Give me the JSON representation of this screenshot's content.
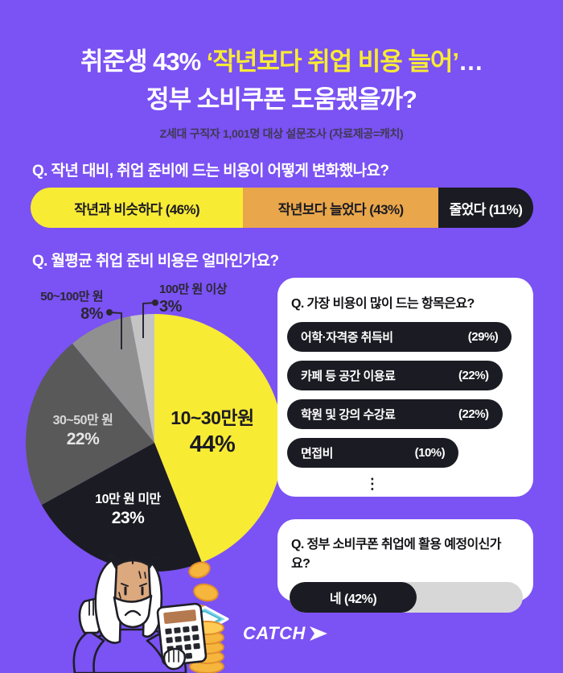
{
  "header": {
    "title_l1_a": "취준생 43% ",
    "title_l1_b": "‘작년보다 취업 비용 늘어’",
    "title_l1_c": "…",
    "title_l2": "정부 소비쿠폰 도움됐을까?",
    "subtitle": "Z세대 구직자 1,001명 대상 설문조사 (자료제공=캐치)"
  },
  "colors": {
    "background": "#7B52F3",
    "accent_yellow": "#F8EB34",
    "accent_orange": "#E9A64A",
    "near_black": "#1B1B23",
    "pie_gray_dark": "#595959",
    "pie_gray_mid": "#909090",
    "pie_gray_light": "#C4C4C4",
    "track_gray": "#D7D7D7",
    "white": "#FFFFFF"
  },
  "chart_data": [
    {
      "type": "bar",
      "variant": "stacked-horizontal",
      "title": "Q. 작년 대비, 취업 준비에 드는 비용이 어떻게 변화했나요?",
      "segments": [
        {
          "label": "작년과 비슷하다 (46%)",
          "value": 46,
          "color": "#F8EB34",
          "text_color": "#1B1B23",
          "width_pct": 42.3
        },
        {
          "label": "작년보다 늘었다 (43%)",
          "value": 43,
          "color": "#E9A64A",
          "text_color": "#1B1B23",
          "width_pct": 38.8
        },
        {
          "label": "줄었다 (11%)",
          "value": 11,
          "color": "#1B1B23",
          "text_color": "#FFFFFF",
          "width_pct": 18.9
        }
      ]
    },
    {
      "type": "pie",
      "title": "Q. 월평균 취업 준비 비용은 얼마인가요?",
      "start_angle_deg": 0,
      "direction": "clockwise",
      "slices": [
        {
          "label": "10~30만원",
          "pct": 44,
          "pct_text": "44%",
          "color": "#F8EB34"
        },
        {
          "label": "10만 원 미만",
          "pct": 23,
          "pct_text": "23%",
          "color": "#1B1B23"
        },
        {
          "label": "30~50만 원",
          "pct": 22,
          "pct_text": "22%",
          "color": "#595959"
        },
        {
          "label": "50~100만 원",
          "pct": 8,
          "pct_text": "8%",
          "color": "#909090"
        },
        {
          "label": "100만 원 이상",
          "pct": 3,
          "pct_text": "3%",
          "color": "#C4C4C4"
        }
      ]
    },
    {
      "type": "bar",
      "variant": "pill-list",
      "title": "Q. 가장 비용이 많이 드는 항목은요?",
      "items": [
        {
          "label": "어학·자격증 취득비",
          "pct_text": "(29%)",
          "value": 29,
          "width_pct": 95
        },
        {
          "label": "카페 등 공간 이용료",
          "pct_text": "(22%)",
          "value": 22,
          "width_pct": 91
        },
        {
          "label": "학원 및 강의 수강료",
          "pct_text": "(22%)",
          "value": 22,
          "width_pct": 91
        },
        {
          "label": "면접비",
          "pct_text": "(10%)",
          "value": 10,
          "width_pct": 72.5
        }
      ],
      "more_indicator": "⋮"
    },
    {
      "type": "bar",
      "variant": "single-progress",
      "title": "Q. 정부 소비쿠폰 취업에 활용 예정이신가요?",
      "answer_label": "네 (42%)",
      "value": 42,
      "fill_pct": 54.5
    }
  ],
  "footer": {
    "brand": "CATCH"
  }
}
